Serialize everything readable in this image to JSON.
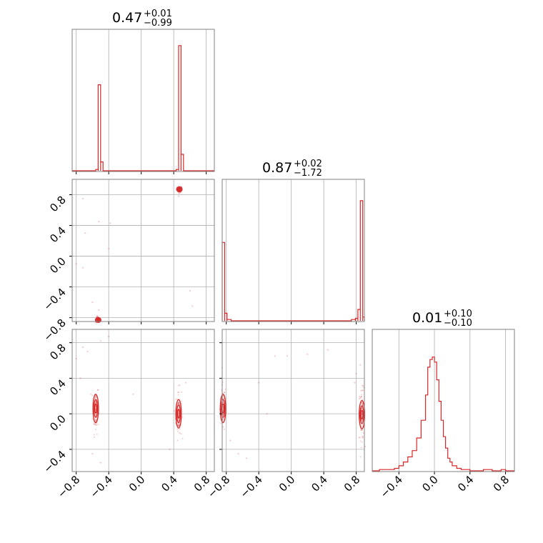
{
  "chart_data": {
    "type": "corner",
    "color": "#d62728",
    "grid": true,
    "axis_range": [
      -0.85,
      0.9
    ],
    "panel_ranges": {
      "p00_x": [
        -0.85,
        0.9
      ],
      "p10_x": [
        -0.85,
        0.9
      ],
      "p10_y": [
        -0.85,
        1.0
      ],
      "p11_x": [
        -0.85,
        0.9
      ],
      "p20_x": [
        -0.85,
        0.9
      ],
      "p20_y": [
        -0.65,
        0.95
      ],
      "p21_x": [
        -0.85,
        0.9
      ],
      "p21_y": [
        -0.65,
        0.95
      ],
      "p22_x": [
        -0.7,
        0.9
      ]
    },
    "titles": [
      {
        "value": "0.47",
        "plus": "+0.01",
        "minus": "−0.99"
      },
      {
        "value": "0.87",
        "plus": "+0.02",
        "minus": "−1.72"
      },
      {
        "value": "0.01",
        "plus": "+0.10",
        "minus": "−0.10"
      }
    ],
    "x_ticks": {
      "cols01": {
        "values": [
          -0.8,
          -0.4,
          0.0,
          0.4,
          0.8
        ],
        "labels": [
          "−0.8",
          "−0.4",
          "0.0",
          "0.4",
          "0.8"
        ]
      },
      "col2": {
        "values": [
          -0.4,
          0.0,
          0.4,
          0.8
        ],
        "labels": [
          "−0.4",
          "0.0",
          "0.4",
          "0.8"
        ]
      }
    },
    "y_ticks": {
      "row1": {
        "values": [
          -0.8,
          -0.4,
          0.0,
          0.4,
          0.8
        ],
        "labels": [
          "−0.8",
          "−0.4",
          "0.0",
          "0.4",
          "0.8"
        ]
      },
      "row2": {
        "values": [
          -0.4,
          0.0,
          0.4,
          0.8
        ],
        "labels": [
          "−0.4",
          "0.0",
          "0.4",
          "0.8"
        ]
      }
    },
    "hist_p0": {
      "bins": [
        [
          -0.56,
          -0.53,
          0.01
        ],
        [
          -0.53,
          -0.5,
          0.68
        ],
        [
          -0.5,
          -0.47,
          0.07
        ],
        [
          0.43,
          0.46,
          0.01
        ],
        [
          0.46,
          0.49,
          0.99
        ],
        [
          0.49,
          0.52,
          0.13
        ]
      ]
    },
    "hist_p1": {
      "bins": [
        [
          -0.85,
          -0.82,
          0.62
        ],
        [
          -0.82,
          -0.79,
          0.06
        ],
        [
          -0.79,
          -0.74,
          0.01
        ],
        [
          0.74,
          0.79,
          0.01
        ],
        [
          0.79,
          0.82,
          0.02
        ],
        [
          0.82,
          0.85,
          0.09
        ],
        [
          0.85,
          0.88,
          0.95
        ],
        [
          0.88,
          0.9,
          0.03
        ]
      ]
    },
    "hist_p2": {
      "edges": [
        -0.7,
        -0.62,
        -0.55,
        -0.5,
        -0.45,
        -0.4,
        -0.35,
        -0.3,
        -0.25,
        -0.2,
        -0.15,
        -0.1,
        -0.075,
        -0.05,
        -0.025,
        0.0,
        0.025,
        0.05,
        0.075,
        0.1,
        0.125,
        0.15,
        0.175,
        0.2,
        0.25,
        0.3,
        0.35,
        0.4,
        0.45,
        0.5,
        0.55,
        0.6,
        0.65,
        0.7,
        0.75,
        0.8,
        0.85,
        0.9
      ],
      "counts": [
        0.0,
        0.01,
        0.01,
        0.01,
        0.02,
        0.04,
        0.07,
        0.11,
        0.16,
        0.26,
        0.4,
        0.6,
        0.82,
        0.88,
        0.9,
        0.86,
        0.72,
        0.55,
        0.4,
        0.27,
        0.18,
        0.1,
        0.07,
        0.04,
        0.02,
        0.01,
        0.01,
        0.0,
        0.0,
        0.0,
        0.01,
        0.01,
        0.0,
        0.0,
        0.01,
        0.0,
        0.0
      ]
    },
    "scatter_p10": {
      "clusters": [
        {
          "cx": 0.47,
          "cy": 0.87,
          "sx": 0.015,
          "sy": 0.02
        },
        {
          "cx": -0.53,
          "cy": -0.83,
          "sx": 0.015,
          "sy": 0.02
        }
      ],
      "outliers": [
        [
          -0.72,
          0.75
        ],
        [
          -0.69,
          0.3
        ],
        [
          -0.52,
          0.45
        ],
        [
          -0.38,
          0.43
        ],
        [
          -0.8,
          -0.1
        ],
        [
          -0.72,
          -0.15
        ],
        [
          -0.4,
          0.1
        ],
        [
          0.6,
          -0.45
        ],
        [
          0.63,
          -0.65
        ],
        [
          -0.6,
          -0.6
        ],
        [
          -0.52,
          -0.7
        ],
        [
          0.46,
          0.78
        ]
      ]
    },
    "contour_p20": {
      "centers": [
        [
          -0.56,
          0.06
        ],
        [
          0.46,
          0.0
        ]
      ],
      "radii_x": [
        0.012,
        0.022,
        0.034
      ],
      "radii_y": [
        0.05,
        0.1,
        0.16
      ],
      "spread_y": 0.14,
      "outliers": [
        [
          -0.72,
          0.75
        ],
        [
          -0.66,
          0.7
        ],
        [
          -0.8,
          0.62
        ],
        [
          -0.75,
          0.4
        ],
        [
          -0.5,
          0.82
        ],
        [
          -0.4,
          0.87
        ],
        [
          -0.1,
          0.22
        ],
        [
          0.35,
          -0.4
        ],
        [
          -0.6,
          -0.45
        ],
        [
          0.55,
          0.35
        ],
        [
          -0.5,
          -0.55
        ]
      ]
    },
    "contour_p21": {
      "centers": [
        [
          0.87,
          -0.01
        ],
        [
          -0.84,
          0.06
        ]
      ],
      "radii_x": [
        0.012,
        0.022,
        0.034
      ],
      "radii_y": [
        0.05,
        0.1,
        0.16
      ],
      "spread_y": 0.14,
      "outliers": [
        [
          -0.4,
          0.35
        ],
        [
          -0.2,
          0.65
        ],
        [
          -0.05,
          0.65
        ],
        [
          0.2,
          0.67
        ],
        [
          0.45,
          0.72
        ],
        [
          -0.65,
          -0.45
        ],
        [
          -0.75,
          -0.3
        ],
        [
          -0.55,
          -0.5
        ],
        [
          -0.3,
          0.0
        ],
        [
          0.8,
          0.45
        ],
        [
          0.85,
          0.55
        ],
        [
          0.78,
          0.35
        ]
      ]
    }
  }
}
